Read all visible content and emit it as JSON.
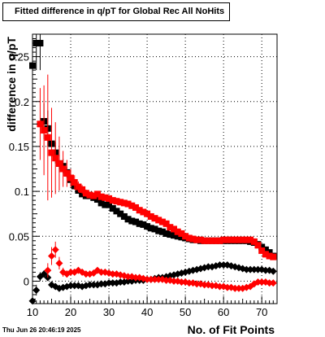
{
  "chart_data": {
    "type": "scatter",
    "title": "Fitted difference in q/pT for Global Rec All NoHits",
    "xlabel": "No. of Fit Points",
    "ylabel": "difference in q/pT",
    "xlim": [
      10,
      74
    ],
    "ylim": [
      -0.025,
      0.275
    ],
    "x_ticks": [
      10,
      20,
      30,
      40,
      50,
      60,
      70
    ],
    "y_ticks": [
      0,
      0.05,
      0.1,
      0.15,
      0.2,
      0.25
    ],
    "y_tick_labels": [
      "0",
      "0.05",
      "0.1",
      "0.15",
      "0.2",
      "0.25"
    ],
    "grid": true,
    "timestamp": "Thu Jun 26 20:46:19 2025",
    "series": [
      {
        "marker": "square",
        "color": "#000000",
        "x": [
          10,
          11,
          12,
          13,
          14,
          15,
          16,
          17,
          18,
          19,
          20,
          21,
          22,
          23,
          24,
          25,
          26,
          27,
          28,
          29,
          30,
          31,
          32,
          33,
          34,
          35,
          36,
          37,
          38,
          39,
          40,
          41,
          42,
          43,
          44,
          45,
          46,
          47,
          48,
          49,
          50,
          51,
          52,
          53,
          54,
          55,
          56,
          57,
          58,
          59,
          60,
          61,
          62,
          63,
          64,
          65,
          66,
          67,
          68,
          69,
          70,
          71,
          72,
          73
        ],
        "y": [
          0.24,
          0.265,
          0.265,
          0.178,
          0.17,
          0.153,
          0.143,
          0.131,
          0.128,
          0.121,
          0.113,
          0.106,
          0.101,
          0.097,
          0.095,
          0.095,
          0.093,
          0.091,
          0.087,
          0.085,
          0.085,
          0.081,
          0.078,
          0.075,
          0.072,
          0.069,
          0.067,
          0.066,
          0.064,
          0.063,
          0.061,
          0.059,
          0.058,
          0.056,
          0.055,
          0.053,
          0.052,
          0.051,
          0.05,
          0.049,
          0.048,
          0.047,
          0.046,
          0.046,
          0.045,
          0.045,
          0.045,
          0.045,
          0.045,
          0.045,
          0.045,
          0.045,
          0.045,
          0.045,
          0.045,
          0.045,
          0.045,
          0.044,
          0.043,
          0.041,
          0.038,
          0.035,
          0.032,
          0.028
        ],
        "yerr": [
          0.02,
          0.03,
          0.03,
          0.02,
          0.02,
          0.015,
          0.012,
          0.01,
          0.008,
          0.006,
          0.005,
          0.004,
          0.003,
          0.003,
          0.002,
          0.002,
          0.002,
          0.002,
          0.002,
          0.002,
          0.002,
          0.002,
          0.002,
          0.002,
          0.002,
          0.002,
          0.002,
          0.002,
          0.002,
          0.002,
          0.002,
          0.002,
          0.002,
          0.002,
          0.002,
          0.002,
          0.002,
          0.002,
          0.002,
          0.002,
          0.002,
          0.002,
          0.002,
          0.002,
          0.002,
          0.002,
          0.002,
          0.002,
          0.002,
          0.002,
          0.002,
          0.002,
          0.002,
          0.002,
          0.002,
          0.002,
          0.002,
          0.002,
          0.002,
          0.002,
          0.002,
          0.002,
          0.002,
          0.002
        ]
      },
      {
        "marker": "square",
        "color": "#ff0000",
        "x": [
          12,
          13,
          14,
          15,
          16,
          17,
          18,
          19,
          20,
          21,
          22,
          23,
          24,
          25,
          26,
          27,
          28,
          29,
          30,
          31,
          32,
          33,
          34,
          35,
          36,
          37,
          38,
          39,
          40,
          41,
          42,
          43,
          44,
          45,
          46,
          47,
          48,
          49,
          50,
          51,
          52,
          53,
          54,
          55,
          56,
          57,
          58,
          59,
          60,
          61,
          62,
          63,
          64,
          65,
          66,
          67,
          68,
          69,
          70,
          71,
          72,
          73
        ],
        "y": [
          0.175,
          0.168,
          0.16,
          0.143,
          0.137,
          0.131,
          0.125,
          0.12,
          0.115,
          0.11,
          0.105,
          0.102,
          0.098,
          0.096,
          0.095,
          0.097,
          0.094,
          0.093,
          0.092,
          0.09,
          0.089,
          0.088,
          0.087,
          0.086,
          0.084,
          0.082,
          0.079,
          0.077,
          0.075,
          0.072,
          0.07,
          0.068,
          0.066,
          0.064,
          0.06,
          0.058,
          0.055,
          0.053,
          0.05,
          0.048,
          0.047,
          0.046,
          0.046,
          0.045,
          0.045,
          0.045,
          0.045,
          0.045,
          0.046,
          0.046,
          0.046,
          0.046,
          0.046,
          0.046,
          0.046,
          0.046,
          0.044,
          0.04,
          0.034,
          0.03,
          0.028,
          0.027
        ],
        "yerr": [
          0.04,
          0.05,
          0.07,
          0.05,
          0.04,
          0.03,
          0.02,
          0.015,
          0.01,
          0.008,
          0.006,
          0.005,
          0.004,
          0.003,
          0.003,
          0.003,
          0.002,
          0.002,
          0.002,
          0.002,
          0.002,
          0.002,
          0.002,
          0.002,
          0.002,
          0.002,
          0.002,
          0.002,
          0.002,
          0.002,
          0.002,
          0.002,
          0.002,
          0.002,
          0.002,
          0.002,
          0.002,
          0.002,
          0.002,
          0.002,
          0.002,
          0.002,
          0.002,
          0.002,
          0.002,
          0.002,
          0.002,
          0.002,
          0.002,
          0.002,
          0.002,
          0.002,
          0.002,
          0.002,
          0.002,
          0.002,
          0.002,
          0.002,
          0.002,
          0.002,
          0.002,
          0.002
        ]
      },
      {
        "marker": "diamond",
        "color": "#000000",
        "x": [
          10,
          11,
          12,
          13,
          14,
          15,
          16,
          17,
          18,
          19,
          20,
          21,
          22,
          23,
          24,
          25,
          26,
          27,
          28,
          29,
          30,
          31,
          32,
          33,
          34,
          35,
          36,
          37,
          38,
          39,
          40,
          41,
          42,
          43,
          44,
          45,
          46,
          47,
          48,
          49,
          50,
          51,
          52,
          53,
          54,
          55,
          56,
          57,
          58,
          59,
          60,
          61,
          62,
          63,
          64,
          65,
          66,
          67,
          68,
          69,
          70,
          71,
          72,
          73
        ],
        "y": [
          -0.022,
          -0.01,
          0.005,
          0.008,
          0.004,
          -0.004,
          -0.006,
          -0.008,
          -0.007,
          -0.006,
          -0.005,
          -0.005,
          -0.005,
          -0.006,
          -0.005,
          -0.004,
          -0.004,
          -0.004,
          -0.003,
          -0.003,
          -0.002,
          -0.002,
          -0.002,
          -0.001,
          -0.001,
          0.0,
          0.0,
          0.001,
          0.001,
          0.001,
          0.002,
          0.002,
          0.003,
          0.004,
          0.004,
          0.005,
          0.006,
          0.007,
          0.008,
          0.009,
          0.01,
          0.011,
          0.012,
          0.013,
          0.014,
          0.015,
          0.016,
          0.016,
          0.017,
          0.018,
          0.018,
          0.018,
          0.017,
          0.016,
          0.015,
          0.014,
          0.013,
          0.013,
          0.013,
          0.013,
          0.013,
          0.012,
          0.012,
          0.011
        ],
        "yerr": [
          0.005,
          0.006,
          0.005,
          0.004,
          0.003,
          0.003,
          0.002,
          0.002,
          0.002,
          0.002,
          0.001,
          0.001,
          0.001,
          0.001,
          0.001,
          0.001,
          0.001,
          0.001,
          0.001,
          0.001,
          0.001,
          0.001,
          0.001,
          0.001,
          0.001,
          0.001,
          0.001,
          0.001,
          0.001,
          0.001,
          0.001,
          0.001,
          0.001,
          0.001,
          0.001,
          0.001,
          0.001,
          0.001,
          0.001,
          0.001,
          0.001,
          0.001,
          0.001,
          0.001,
          0.001,
          0.001,
          0.001,
          0.001,
          0.001,
          0.001,
          0.001,
          0.001,
          0.001,
          0.001,
          0.001,
          0.001,
          0.001,
          0.001,
          0.001,
          0.001,
          0.001,
          0.001,
          0.001,
          0.001
        ]
      },
      {
        "marker": "diamond",
        "color": "#ff0000",
        "x": [
          14,
          15,
          16,
          17,
          18,
          19,
          20,
          21,
          22,
          23,
          24,
          25,
          26,
          27,
          28,
          29,
          30,
          31,
          32,
          33,
          34,
          35,
          36,
          37,
          38,
          39,
          40,
          41,
          42,
          43,
          44,
          45,
          46,
          47,
          48,
          49,
          50,
          51,
          52,
          53,
          54,
          55,
          56,
          57,
          58,
          59,
          60,
          61,
          62,
          63,
          64,
          65,
          66,
          67,
          68,
          69,
          70,
          71,
          72,
          73
        ],
        "y": [
          0.012,
          0.028,
          0.035,
          0.02,
          0.01,
          0.008,
          0.01,
          0.01,
          0.012,
          0.01,
          0.008,
          0.008,
          0.009,
          0.012,
          0.01,
          0.01,
          0.009,
          0.008,
          0.008,
          0.007,
          0.006,
          0.005,
          0.005,
          0.004,
          0.004,
          0.003,
          0.002,
          0.002,
          0.002,
          0.002,
          0.002,
          0.001,
          0.001,
          0.0,
          0.0,
          -0.001,
          -0.001,
          -0.002,
          -0.002,
          -0.003,
          -0.003,
          -0.004,
          -0.004,
          -0.005,
          -0.005,
          -0.006,
          -0.006,
          -0.007,
          -0.007,
          -0.008,
          -0.008,
          -0.008,
          -0.007,
          -0.006,
          -0.003,
          -0.001,
          -0.001,
          -0.001,
          -0.002,
          -0.002
        ],
        "yerr": [
          0.008,
          0.01,
          0.009,
          0.007,
          0.005,
          0.004,
          0.003,
          0.002,
          0.002,
          0.002,
          0.001,
          0.001,
          0.001,
          0.001,
          0.001,
          0.001,
          0.001,
          0.001,
          0.001,
          0.001,
          0.001,
          0.001,
          0.001,
          0.001,
          0.001,
          0.001,
          0.001,
          0.001,
          0.001,
          0.001,
          0.001,
          0.001,
          0.001,
          0.001,
          0.001,
          0.001,
          0.001,
          0.001,
          0.001,
          0.001,
          0.001,
          0.001,
          0.001,
          0.001,
          0.001,
          0.001,
          0.001,
          0.001,
          0.001,
          0.001,
          0.001,
          0.001,
          0.001,
          0.001,
          0.001,
          0.001,
          0.001,
          0.001,
          0.001,
          0.001
        ]
      }
    ]
  }
}
